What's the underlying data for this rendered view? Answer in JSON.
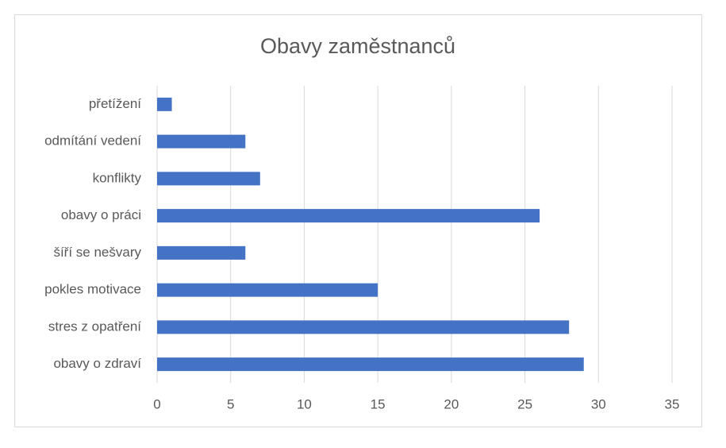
{
  "chart_data": {
    "type": "bar",
    "orientation": "horizontal",
    "title": "Obavy zaměstnanců",
    "categories": [
      "přetížení",
      "odmítání vedení",
      "konflikty",
      "obavy o práci",
      "šíří se nešvary",
      "pokles motivace",
      "stres z opatření",
      "obavy o zdraví"
    ],
    "values": [
      1,
      6,
      7,
      26,
      6,
      15,
      28,
      29
    ],
    "color": "#4472c4",
    "xlim": [
      0,
      35
    ],
    "xticks": [
      0,
      5,
      10,
      15,
      20,
      25,
      30,
      35
    ],
    "grid": true
  }
}
